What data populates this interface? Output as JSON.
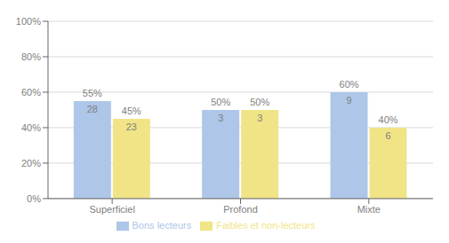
{
  "chart_data": {
    "type": "bar",
    "categories": [
      "Superficiel",
      "Profond",
      "Mixte"
    ],
    "series": [
      {
        "name": "Bons lecteurs",
        "color": "#aec6e8",
        "values": [
          55,
          50,
          60
        ],
        "value_labels": [
          "55%",
          "50%",
          "60%"
        ],
        "counts": [
          28,
          3,
          9
        ]
      },
      {
        "name": "Faibles et non-lecteurs",
        "color": "#f0e487",
        "values": [
          45,
          50,
          40
        ],
        "value_labels": [
          "45%",
          "50%",
          "40%"
        ],
        "counts": [
          23,
          3,
          6
        ]
      }
    ],
    "ylim": [
      0,
      100
    ],
    "yticks": [
      {
        "value": 0,
        "label": "0%"
      },
      {
        "value": 20,
        "label": "20%"
      },
      {
        "value": 40,
        "label": "40%"
      },
      {
        "value": 60,
        "label": "60%"
      },
      {
        "value": 80,
        "label": "80%"
      },
      {
        "value": 100,
        "label": "100%"
      }
    ],
    "grid": true,
    "legend": "bottom",
    "data_labels": true
  }
}
